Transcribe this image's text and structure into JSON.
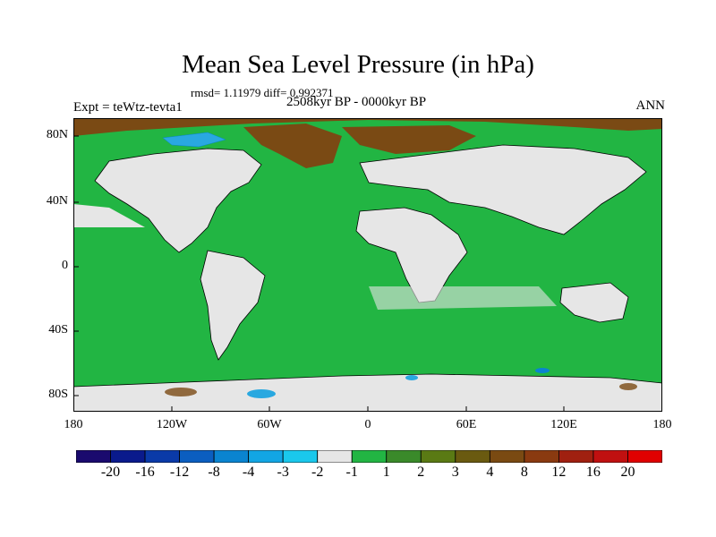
{
  "title": "Mean Sea Level Pressure (in hPa)",
  "stats": "rmsd= 1.11979 diff= 0.992371",
  "experiment": "Expt = teWtz-tevta1",
  "period": "2508kyr BP - 0000kyr BP",
  "season": "ANN",
  "map": {
    "land_color": "#e6e6e6",
    "ocean_color": "#22b543",
    "positive_dark_color": "#7a4a14",
    "negative_color": "#29a8e0"
  },
  "lat_labels": [
    "80N",
    "40N",
    "0",
    "40S",
    "80S"
  ],
  "lon_labels": [
    "180",
    "120W",
    "60W",
    "0",
    "60E",
    "120E",
    "180"
  ],
  "colorbar": {
    "colors": [
      "#1a0a6e",
      "#0a1a8c",
      "#0a3aa8",
      "#0b5ec0",
      "#0a84d0",
      "#12a6e4",
      "#1ac8ec",
      "#e6e6e6",
      "#22b543",
      "#3a8a2a",
      "#5a7a14",
      "#6a5a10",
      "#7a4a12",
      "#8a3a10",
      "#a02010",
      "#c01010",
      "#e00000"
    ],
    "labels": [
      "-20",
      "-16",
      "-12",
      "-8",
      "-4",
      "-3",
      "-2",
      "-1",
      "1",
      "2",
      "3",
      "4",
      "8",
      "12",
      "16",
      "20"
    ]
  }
}
